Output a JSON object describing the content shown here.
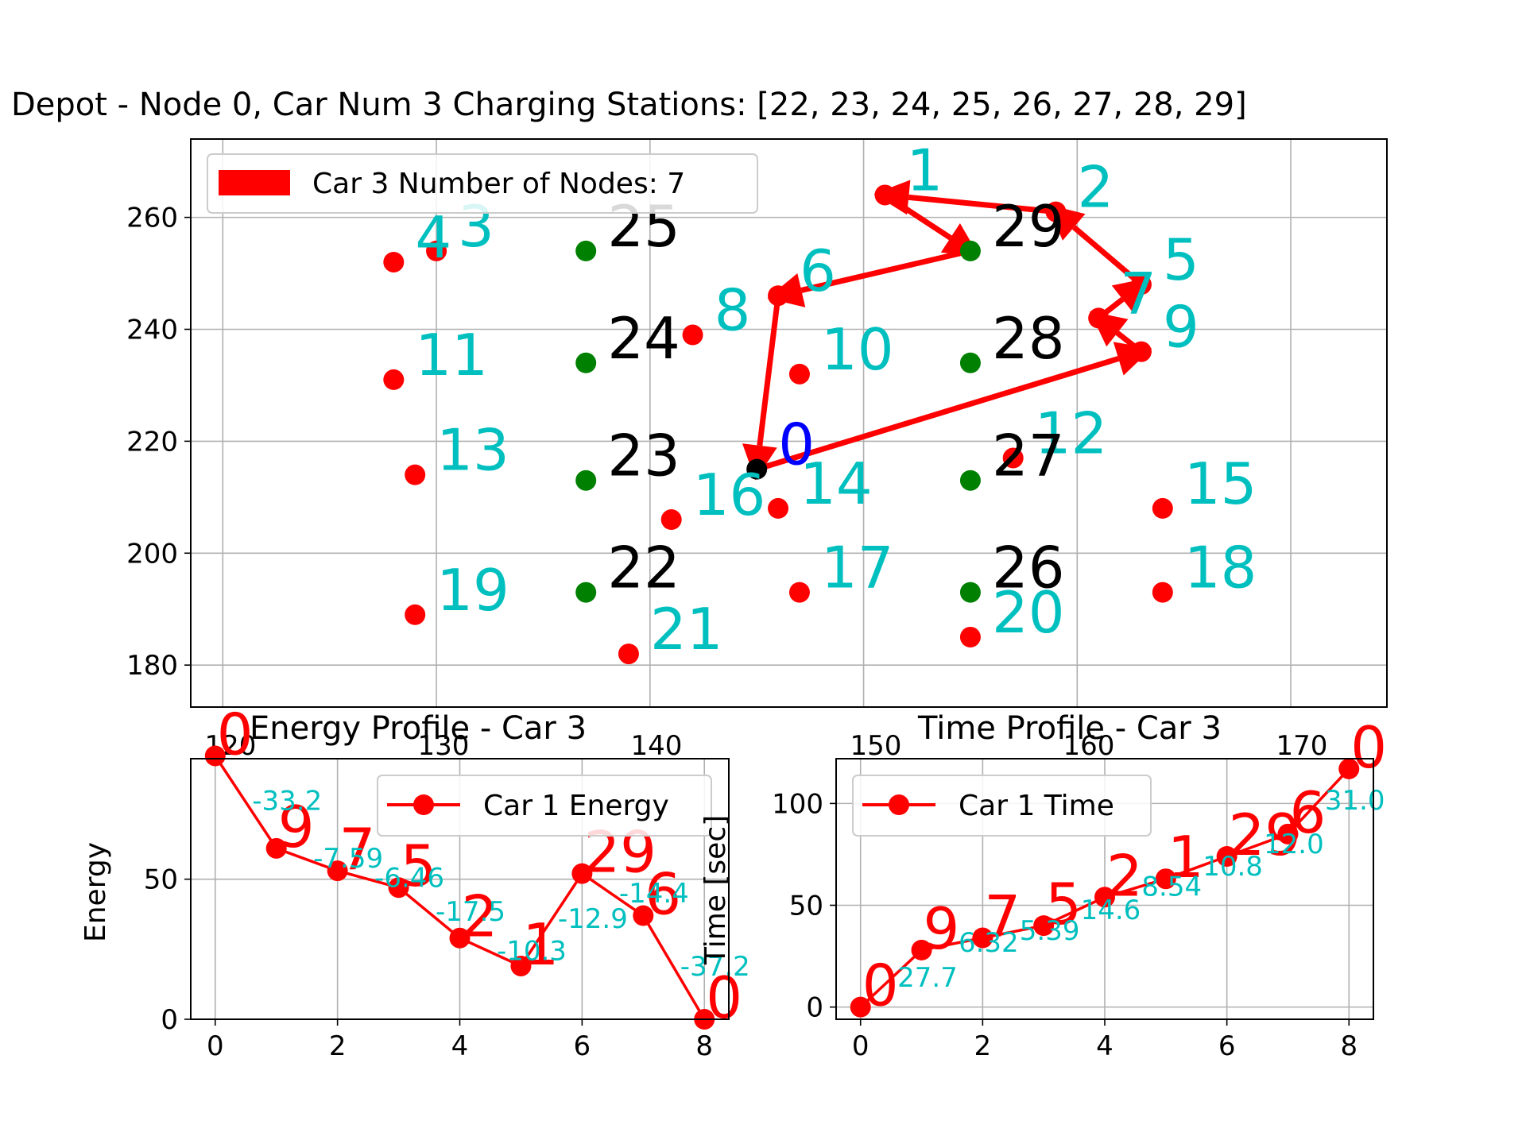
{
  "figure": {
    "main_title": "Depot - Node 0, Car Num 3 Charging Stations: [22, 23, 24, 25, 26, 27, 28, 29]",
    "main_legend_label": "Car 3 Number of Nodes: 7",
    "energy_title": "Energy Profile - Car 3",
    "energy_ylabel": "Energy",
    "energy_legend_label": "Car 1 Energy",
    "time_title": "Time Profile - Car 3",
    "time_ylabel": "Time [sec]",
    "time_legend_label": "Car 1 Time"
  },
  "chart_data": [
    {
      "type": "scatter",
      "title": "Depot - Node 0, Car Num 3 Charging Stations: [22, 23, 24, 25, 26, 27, 28, 29]",
      "xlim": [
        118.5,
        174.5
      ],
      "ylim": [
        172.5,
        274.0
      ],
      "xticks": [
        120,
        130,
        140,
        150,
        160,
        170
      ],
      "yticks": [
        180,
        200,
        220,
        240,
        260
      ],
      "grid": true,
      "legend": "upper-left",
      "depot": {
        "id": 0,
        "x": 145.0,
        "y": 215.0
      },
      "customers": [
        {
          "id": 1,
          "x": 151.0,
          "y": 264.0
        },
        {
          "id": 2,
          "x": 159.0,
          "y": 261.0
        },
        {
          "id": 3,
          "x": 130.0,
          "y": 254.0
        },
        {
          "id": 4,
          "x": 128.0,
          "y": 252.0
        },
        {
          "id": 5,
          "x": 163.0,
          "y": 248.0
        },
        {
          "id": 6,
          "x": 146.0,
          "y": 246.0
        },
        {
          "id": 7,
          "x": 161.0,
          "y": 242.0
        },
        {
          "id": 8,
          "x": 142.0,
          "y": 239.0
        },
        {
          "id": 9,
          "x": 163.0,
          "y": 236.0
        },
        {
          "id": 10,
          "x": 147.0,
          "y": 232.0
        },
        {
          "id": 11,
          "x": 128.0,
          "y": 231.0
        },
        {
          "id": 12,
          "x": 157.0,
          "y": 217.0
        },
        {
          "id": 13,
          "x": 129.0,
          "y": 214.0
        },
        {
          "id": 14,
          "x": 146.0,
          "y": 208.0
        },
        {
          "id": 15,
          "x": 164.0,
          "y": 208.0
        },
        {
          "id": 16,
          "x": 141.0,
          "y": 206.0
        },
        {
          "id": 17,
          "x": 147.0,
          "y": 193.0
        },
        {
          "id": 18,
          "x": 164.0,
          "y": 193.0
        },
        {
          "id": 19,
          "x": 129.0,
          "y": 189.0
        },
        {
          "id": 20,
          "x": 155.0,
          "y": 185.0
        },
        {
          "id": 21,
          "x": 139.0,
          "y": 182.0
        }
      ],
      "stations": [
        {
          "id": 22,
          "x": 137.0,
          "y": 193.0
        },
        {
          "id": 23,
          "x": 137.0,
          "y": 213.0
        },
        {
          "id": 24,
          "x": 137.0,
          "y": 234.0
        },
        {
          "id": 25,
          "x": 137.0,
          "y": 254.0
        },
        {
          "id": 26,
          "x": 155.0,
          "y": 193.0
        },
        {
          "id": 27,
          "x": 155.0,
          "y": 213.0
        },
        {
          "id": 28,
          "x": 155.0,
          "y": 234.0
        },
        {
          "id": 29,
          "x": 155.0,
          "y": 254.0
        }
      ],
      "route": [
        0,
        9,
        7,
        5,
        2,
        1,
        29,
        6,
        0
      ],
      "colors": {
        "customer": "#ff0000",
        "station": "#008000",
        "depot": "#000000",
        "route": "#ff0000",
        "customer_label": "#00bfbf",
        "station_label": "#000000",
        "depot_label": "#0000ff"
      }
    },
    {
      "type": "line",
      "title": "Energy Profile - Car 3",
      "xlabel": "",
      "ylabel": "Energy",
      "xlim": [
        -0.4,
        8.4
      ],
      "ylim": [
        0,
        93
      ],
      "xticks": [
        0,
        2,
        4,
        6,
        8
      ],
      "yticks": [
        0,
        50
      ],
      "top_ticks": [
        "120",
        "130",
        "140"
      ],
      "grid": true,
      "legend": "upper-right",
      "series": [
        {
          "name": "Car 1 Energy",
          "x": [
            0,
            1,
            2,
            3,
            4,
            5,
            6,
            7,
            8
          ],
          "values": [
            94,
            61,
            53,
            47,
            29,
            19,
            52,
            37,
            0
          ]
        }
      ],
      "point_labels": [
        "0",
        "9",
        "7",
        "5",
        "2",
        "1",
        "29",
        "6",
        "0"
      ],
      "segment_labels": [
        "-33.2",
        "-7.59",
        "-6.46",
        "-17.5",
        "-10.3",
        "-12.9",
        "-14.4",
        "-37.2"
      ]
    },
    {
      "type": "line",
      "title": "Time Profile - Car 3",
      "xlabel": "",
      "ylabel": "Time [sec]",
      "xlim": [
        -0.4,
        8.4
      ],
      "ylim": [
        -6,
        122
      ],
      "xticks": [
        0,
        2,
        4,
        6,
        8
      ],
      "yticks": [
        0,
        50,
        100
      ],
      "top_ticks": [
        "150",
        "160",
        "170"
      ],
      "grid": true,
      "legend": "upper-left",
      "series": [
        {
          "name": "Car 1 Time",
          "x": [
            0,
            1,
            2,
            3,
            4,
            5,
            6,
            7,
            8
          ],
          "values": [
            0,
            28,
            34,
            40,
            54,
            63,
            74,
            85,
            117
          ]
        }
      ],
      "point_labels": [
        "0",
        "9",
        "7",
        "5",
        "2",
        "1",
        "29",
        "6",
        "0"
      ],
      "segment_labels": [
        "27.7",
        "6.32",
        "5.39",
        "14.6",
        "8.54",
        "10.8",
        "12.0",
        "31.0"
      ]
    }
  ]
}
